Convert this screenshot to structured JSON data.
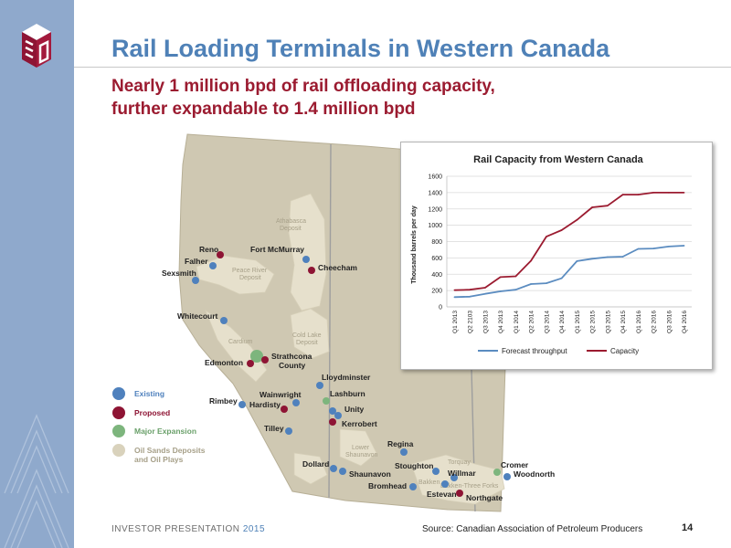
{
  "header": {
    "title": "Rail Loading Terminals in Western Canada",
    "subtitle_line1": "Nearly 1 million bpd of rail offloading capacity,",
    "subtitle_line2": "further expandable to 1.4 million bpd"
  },
  "footer": {
    "left": "INVESTOR PRESENTATION",
    "year": "2015",
    "source": "Source: Canadian Association of Petroleum Producers",
    "page": "14"
  },
  "colors": {
    "existing": "#4f81bd",
    "proposed": "#8e1434",
    "expansion": "#7db57d",
    "oil_sands": "#d9d2bc",
    "sidebar": "#8fa9cc"
  },
  "map": {
    "legend": [
      {
        "label": "Existing",
        "color_key": "existing"
      },
      {
        "label": "Proposed",
        "color_key": "proposed"
      },
      {
        "label": "Major Expansion",
        "color_key": "expansion"
      },
      {
        "label": "Oil Sands Deposits",
        "color_key": "oil_sands"
      },
      {
        "label": "and Oil Plays",
        "color_key": "oil_sands"
      }
    ],
    "deposits": {
      "athabasca_1": "Athabasca",
      "athabasca_2": "Deposit",
      "peace_1": "Peace River",
      "peace_2": "Deposit",
      "cold_1": "Cold Lake",
      "cold_2": "Deposit",
      "cardium": "Cardium",
      "lower_1": "Lower",
      "lower_2": "Shaunavon",
      "torquay": "Torquay",
      "bakken": "Bakken",
      "bakken_tf": "Bakken-Three Forks"
    },
    "terminals": {
      "reno": "Reno",
      "falher": "Falher",
      "sexsmith": "Sexsmith",
      "fort_mcmurray": "Fort McMurray",
      "cheecham": "Cheecham",
      "whitecourt": "Whitecourt",
      "edmonton": "Edmonton",
      "strathcona_1": "Strathcona",
      "strathcona_2": "County",
      "lloydminster": "Lloydminster",
      "lashburn": "Lashburn",
      "wainwright": "Wainwright",
      "hardisty": "Hardisty",
      "rimbey": "Rimbey",
      "unity": "Unity",
      "kerrobert": "Kerrobert",
      "tilley": "Tilley",
      "regina": "Regina",
      "dollard": "Dollard",
      "shaunavon": "Shaunavon",
      "stoughton": "Stoughton",
      "willmar": "Willmar",
      "bromhead": "Bromhead",
      "estevan": "Estevan",
      "northgate": "Northgate",
      "cromer": "Cromer",
      "woodnorth": "Woodnorth"
    }
  },
  "chart_data": {
    "type": "line",
    "title": "Rail Capacity from Western Canada",
    "ylabel": "Thousand barrels per day",
    "xlabel": "",
    "ylim": [
      0,
      1600
    ],
    "yticks": [
      0,
      200,
      400,
      600,
      800,
      1000,
      1200,
      1400,
      1600
    ],
    "grid": true,
    "legend_position": "bottom",
    "categories": [
      "Q1 2013",
      "Q2 2103",
      "Q3 2013",
      "Q4 2013",
      "Q1 2014",
      "Q2 2014",
      "Q3 2014",
      "Q4 2014",
      "Q1 2015",
      "Q2 2015",
      "Q3 2015",
      "Q4 2015",
      "Q1 2016",
      "Q2 2016",
      "Q3 2016",
      "Q4 2016"
    ],
    "series": [
      {
        "name": "Forecast throughput",
        "color": "#5b8cc0",
        "values": [
          120,
          125,
          160,
          190,
          210,
          280,
          290,
          350,
          560,
          590,
          610,
          615,
          710,
          715,
          740,
          750
        ]
      },
      {
        "name": "Capacity",
        "color": "#9b1b30",
        "values": [
          205,
          210,
          235,
          365,
          375,
          565,
          860,
          940,
          1065,
          1220,
          1240,
          1375,
          1375,
          1400,
          1400,
          1400
        ]
      }
    ]
  }
}
